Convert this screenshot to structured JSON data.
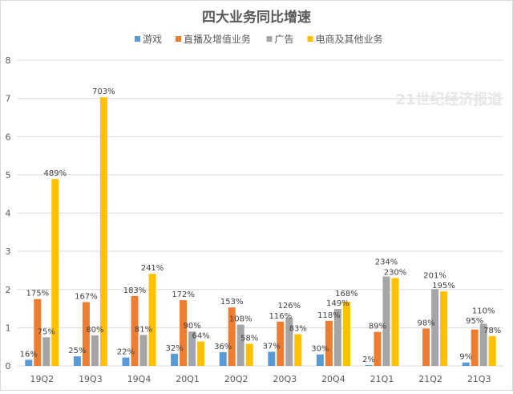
{
  "chart_data": {
    "type": "bar",
    "title": "四大业务同比增速",
    "xlabel": "",
    "ylabel": "",
    "ylim": [
      0,
      8
    ],
    "yticks": [
      "0",
      "1",
      "2",
      "3",
      "4",
      "5",
      "6",
      "7",
      "8"
    ],
    "grid": true,
    "legend_position": "top",
    "categories": [
      "19Q2",
      "19Q3",
      "19Q4",
      "20Q1",
      "20Q2",
      "20Q3",
      "20Q4",
      "21Q1",
      "21Q2",
      "21Q3"
    ],
    "series": [
      {
        "name": "游戏",
        "color": "#5b9bd5",
        "values": [
          0.16,
          0.25,
          0.22,
          0.32,
          0.36,
          0.37,
          0.3,
          0.02,
          null,
          0.09
        ],
        "labels": [
          "16%",
          "25%",
          "22%",
          "32%",
          "36%",
          "37%",
          "30%",
          "2%",
          "",
          "9%"
        ]
      },
      {
        "name": "直播及增值业务",
        "color": "#ed7d31",
        "values": [
          1.75,
          1.67,
          1.83,
          1.72,
          1.53,
          1.16,
          1.18,
          0.89,
          0.98,
          0.95
        ],
        "labels": [
          "175%",
          "167%",
          "183%",
          "172%",
          "153%",
          "116%",
          "118%",
          "89%",
          "98%",
          "95%"
        ]
      },
      {
        "name": "广告",
        "color": "#a5a5a5",
        "values": [
          0.75,
          0.8,
          0.81,
          0.9,
          1.08,
          1.26,
          1.49,
          2.34,
          2.01,
          1.1
        ],
        "labels": [
          "75%",
          "80%",
          "81%",
          "90%",
          "108%",
          "126%",
          "149%",
          "234%",
          "201%",
          "110%"
        ]
      },
      {
        "name": "电商及其他业务",
        "color": "#ffc000",
        "values": [
          4.89,
          7.03,
          2.41,
          0.64,
          0.58,
          0.83,
          1.68,
          2.3,
          1.95,
          0.78
        ],
        "labels": [
          "489%",
          "703%",
          "241%",
          "64%",
          "58%",
          "83%",
          "168%",
          "230%",
          "195%",
          "78%"
        ]
      }
    ]
  },
  "watermark": "21世纪经济报道"
}
